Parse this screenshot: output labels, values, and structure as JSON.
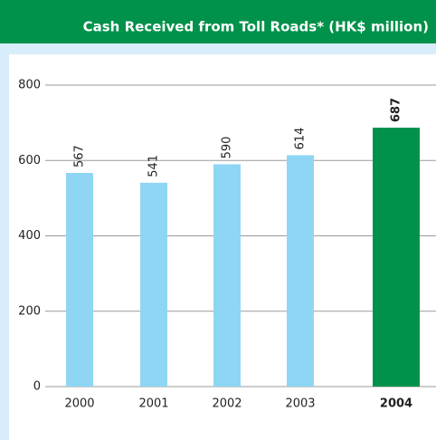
{
  "chart_data": {
    "type": "bar",
    "title": "Cash Received from Toll Roads* (HK$ million)",
    "categories": [
      "2000",
      "2001",
      "2002",
      "2003",
      "2004"
    ],
    "values": [
      567,
      541,
      590,
      614,
      687
    ],
    "colors": [
      "#8fd6f4",
      "#8fd6f4",
      "#8fd6f4",
      "#8fd6f4",
      "#00914a"
    ],
    "emphasis": [
      false,
      false,
      false,
      false,
      true
    ],
    "ylim": [
      0,
      800
    ],
    "yticks": [
      0,
      200,
      400,
      600,
      800
    ],
    "grid": true
  }
}
